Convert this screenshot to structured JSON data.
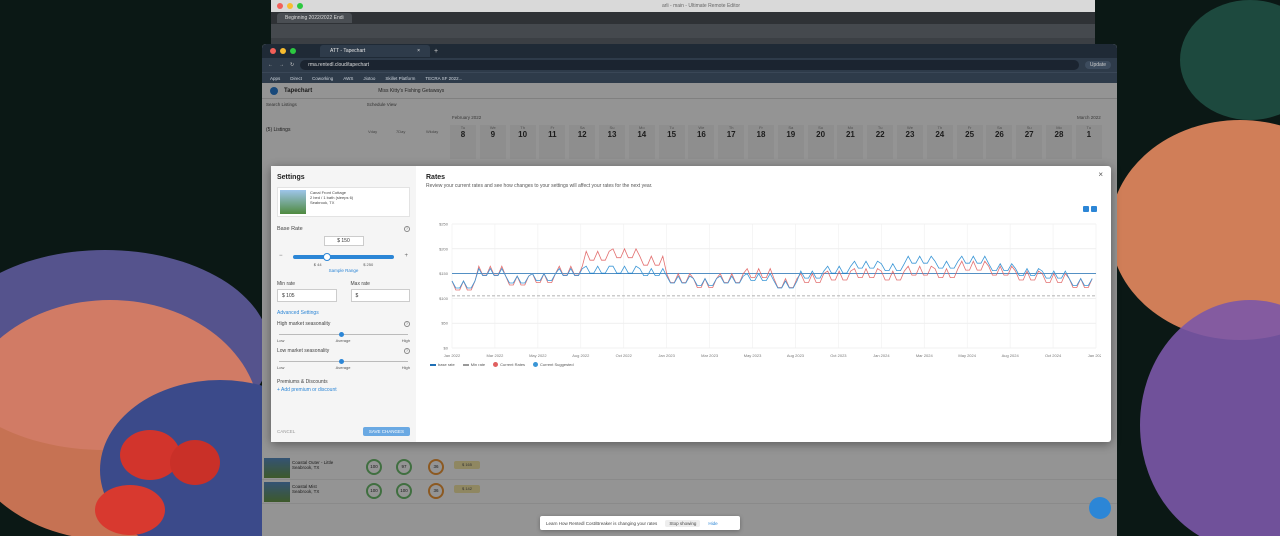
{
  "back_window": {
    "title": "arli - main - Ultimate Remote Editor",
    "tab": "Beginning 2022/2022 Endi"
  },
  "browser": {
    "tab_title": "ATT - Tapechart",
    "url": "rma.rentedl.cloud/tapechart",
    "update_label": "Update",
    "bookmarks": [
      "Apps",
      "Direct",
      "Coworking",
      "AWS",
      "Jiotoo",
      "Skillet Platform",
      "TECRA SF 2022..."
    ]
  },
  "app": {
    "name": "Tapechart",
    "property": "Miss Kitty's Fishing Getaways",
    "search_label": "Search Listings",
    "schedule_label": "Schedule View",
    "month_left": "February 2022",
    "month_right": "March 2022",
    "listings_count": "(5) Listings",
    "columns": [
      "Vday",
      "7Day",
      "Wkday"
    ],
    "dates": [
      {
        "w": "Tu",
        "d": "8"
      },
      {
        "w": "We",
        "d": "9"
      },
      {
        "w": "Th",
        "d": "10"
      },
      {
        "w": "Fr",
        "d": "11"
      },
      {
        "w": "Sa",
        "d": "12"
      },
      {
        "w": "Su",
        "d": "13"
      },
      {
        "w": "Mo",
        "d": "14"
      },
      {
        "w": "Tu",
        "d": "15"
      },
      {
        "w": "We",
        "d": "16"
      },
      {
        "w": "Th",
        "d": "17"
      },
      {
        "w": "Fr",
        "d": "18"
      },
      {
        "w": "Sa",
        "d": "19"
      },
      {
        "w": "Su",
        "d": "20"
      },
      {
        "w": "Mo",
        "d": "21"
      },
      {
        "w": "Tu",
        "d": "22"
      },
      {
        "w": "We",
        "d": "23"
      },
      {
        "w": "Th",
        "d": "24"
      },
      {
        "w": "Fr",
        "d": "25"
      },
      {
        "w": "Sa",
        "d": "26"
      },
      {
        "w": "Su",
        "d": "27"
      },
      {
        "w": "Mo",
        "d": "28"
      },
      {
        "w": "Tu",
        "d": "1"
      }
    ],
    "rows": [
      {
        "name": "Coastal Outer - Little",
        "loc": "Seabrook, TX",
        "s1": "100",
        "s2": "97",
        "s3": "36",
        "price": "$ 165"
      },
      {
        "name": "Coastal Mist",
        "loc": "Seabrook, TX",
        "s1": "100",
        "s2": "100",
        "s3": "36",
        "price": "$ 142"
      }
    ]
  },
  "modal": {
    "settings_title": "Settings",
    "listing_name": "Canal Front Cottage",
    "listing_line2": "2 bed / 1 bath (sleeps 6)",
    "listing_line3": "Seabrook, TX",
    "base_rate_label": "Base Rate",
    "base_rate_value": "$ 150",
    "range_min": "$ 44",
    "range_max": "$ 250",
    "sample_range": "Sample Range",
    "min_rate_label": "Min rate",
    "min_rate_value": "$ 105",
    "max_rate_label": "Max rate",
    "max_rate_value": "$",
    "advanced": "Advanced Settings",
    "high_label": "High market seasonality",
    "low_label": "Low market seasonality",
    "scale": [
      "Low",
      "Average",
      "High"
    ],
    "premiums_label": "Premiums & Discounts",
    "add_premium": "+ Add premium or discount",
    "cancel": "CANCEL",
    "save": "SAVE CHANGES",
    "rates_title": "Rates",
    "rates_subtitle": "Review your current rates and see how changes to your settings will affect your rates for the next year.",
    "close": "×"
  },
  "chart_data": {
    "type": "line",
    "title": "Rates",
    "yticks": [
      "$0",
      "$50",
      "$100",
      "$150",
      "$200",
      "$250"
    ],
    "ylim": [
      0,
      250
    ],
    "xticks": [
      "Jan 2022",
      "Mar 2022",
      "May 2022",
      "Aug 2022",
      "Oct 2022",
      "Jan 2023",
      "Mar 2023",
      "May 2023",
      "Aug 2023",
      "Oct 2023",
      "Jan 2024",
      "Mar 2024",
      "May 2024",
      "Aug 2024",
      "Oct 2024",
      "Jan 2025"
    ],
    "series": [
      {
        "name": "base rate",
        "color": "#1f6fb5",
        "values": [
          150,
          150,
          150,
          150,
          150,
          150,
          150,
          150,
          150,
          150,
          150,
          150,
          150,
          150,
          150,
          150,
          150,
          150,
          150,
          150,
          150,
          150,
          150,
          150
        ]
      },
      {
        "name": "Min rate",
        "color": "#999999",
        "values": [
          105,
          105,
          105,
          105,
          105,
          105,
          105,
          105,
          105,
          105,
          105,
          105,
          105,
          105,
          105,
          105,
          105,
          105,
          105,
          105,
          105,
          105,
          105,
          105
        ]
      },
      {
        "name": "Current Rates",
        "color": "#e06060",
        "values": [
          135,
          165,
          145,
          150,
          165,
          195,
          200,
          185,
          150,
          140,
          150,
          160,
          140,
          150,
          155,
          160,
          155,
          165,
          160,
          175,
          165,
          155,
          150,
          140
        ]
      },
      {
        "name": "Current Suggested",
        "color": "#3a96d6",
        "values": [
          135,
          160,
          145,
          150,
          160,
          165,
          165,
          160,
          145,
          140,
          145,
          150,
          135,
          155,
          165,
          175,
          170,
          185,
          175,
          185,
          170,
          160,
          155,
          140
        ]
      }
    ],
    "legend": [
      "base rate",
      "Min rate",
      "Current Rates",
      "Current Suggested"
    ],
    "legend_position": "bottom-left",
    "grid": true
  },
  "toast": {
    "text": "Learn How Rentedl Cost/Breaker is changing your rates",
    "button": "Stop showing",
    "hide": "Hide"
  }
}
